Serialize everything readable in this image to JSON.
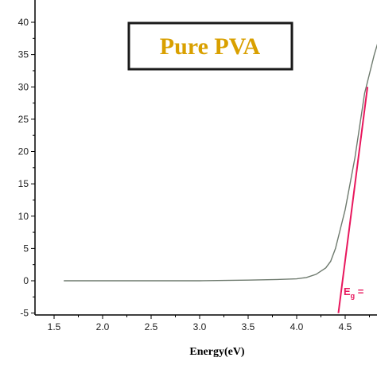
{
  "chart_data": {
    "type": "line",
    "title": "Pure PVA",
    "xlabel": "Energy(eV)",
    "ylabel": "",
    "xlim": [
      1.1,
      4.85
    ],
    "ylim": [
      -5,
      42
    ],
    "x_ticks": [
      "1.5",
      "2.0",
      "2.5",
      "3.0",
      "3.5",
      "4.0",
      "4.5"
    ],
    "y_ticks": [
      "-5",
      "0",
      "5",
      "10",
      "15",
      "20",
      "25",
      "30",
      "35",
      "40"
    ],
    "grid": false,
    "series": [
      {
        "x": [
          1.6,
          2.0,
          2.5,
          3.0,
          3.5,
          3.8,
          4.0,
          4.1,
          4.2,
          4.3,
          4.35,
          4.4,
          4.45,
          4.5,
          4.55,
          4.6,
          4.65,
          4.7,
          4.75,
          4.8,
          4.85
        ],
        "y": [
          0,
          0,
          0,
          0,
          0.1,
          0.2,
          0.3,
          0.5,
          1.0,
          2.0,
          3.0,
          5.0,
          8.0,
          11.0,
          15.0,
          19.0,
          24.0,
          29.0,
          32.0,
          35.0,
          37.5
        ],
        "color": "#6e7a6e"
      }
    ],
    "fit_line": {
      "x": [
        4.43,
        4.73
      ],
      "y": [
        -5,
        30
      ],
      "color": "#e8175d"
    },
    "annotations": [
      {
        "text": "E",
        "sub": "g",
        "suffix": " =",
        "color": "#e8175d"
      }
    ],
    "title_color": "#d9a000"
  }
}
